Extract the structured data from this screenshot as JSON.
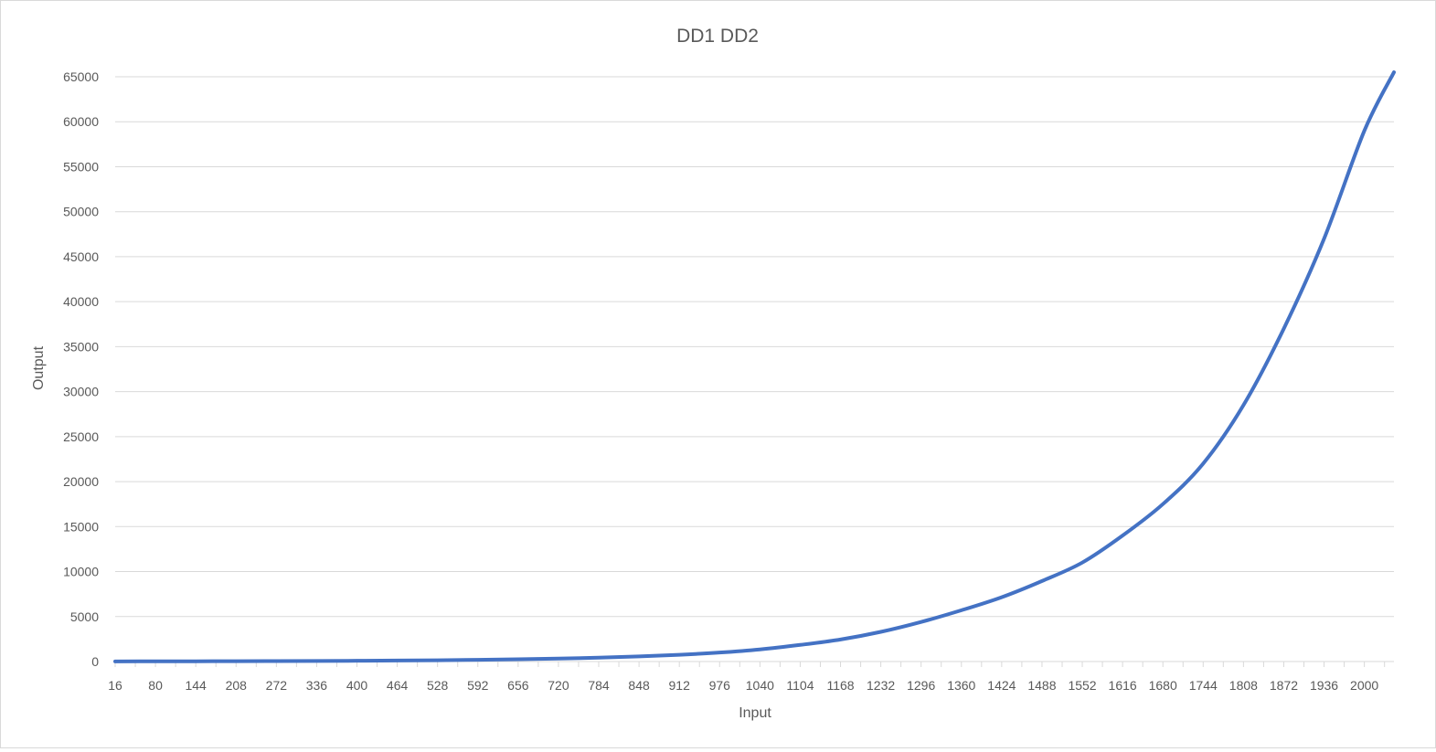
{
  "chart_data": {
    "type": "line",
    "title": "DD1 DD2",
    "xlabel": "Input",
    "ylabel": "Output",
    "x_tick_labels": [
      "16",
      "80",
      "144",
      "208",
      "272",
      "336",
      "400",
      "464",
      "528",
      "592",
      "656",
      "720",
      "784",
      "848",
      "912",
      "976",
      "1040",
      "1104",
      "1168",
      "1232",
      "1296",
      "1360",
      "1424",
      "1488",
      "1552",
      "1616",
      "1680",
      "1744",
      "1808",
      "1872",
      "1936",
      "2000"
    ],
    "y_tick_labels": [
      "0",
      "5000",
      "10000",
      "15000",
      "20000",
      "25000",
      "30000",
      "35000",
      "40000",
      "45000",
      "50000",
      "55000",
      "60000",
      "65000"
    ],
    "xlim": [
      16,
      2047
    ],
    "ylim": [
      0,
      65000
    ],
    "grid": true,
    "legend": "none",
    "series": [
      {
        "color": "#4472c4",
        "x": [
          16,
          80,
          144,
          208,
          272,
          336,
          400,
          464,
          528,
          592,
          656,
          720,
          784,
          848,
          912,
          976,
          1040,
          1104,
          1168,
          1232,
          1296,
          1360,
          1424,
          1488,
          1552,
          1616,
          1680,
          1744,
          1808,
          1872,
          1936,
          2000,
          2047
        ],
        "values": [
          18,
          23,
          30,
          39,
          50,
          65,
          85,
          110,
          145,
          190,
          250,
          330,
          430,
          570,
          750,
          1000,
          1350,
          1850,
          2450,
          3300,
          4400,
          5700,
          7150,
          8950,
          11000,
          14000,
          17500,
          22000,
          28500,
          37000,
          47000,
          59000,
          65500
        ]
      }
    ]
  }
}
